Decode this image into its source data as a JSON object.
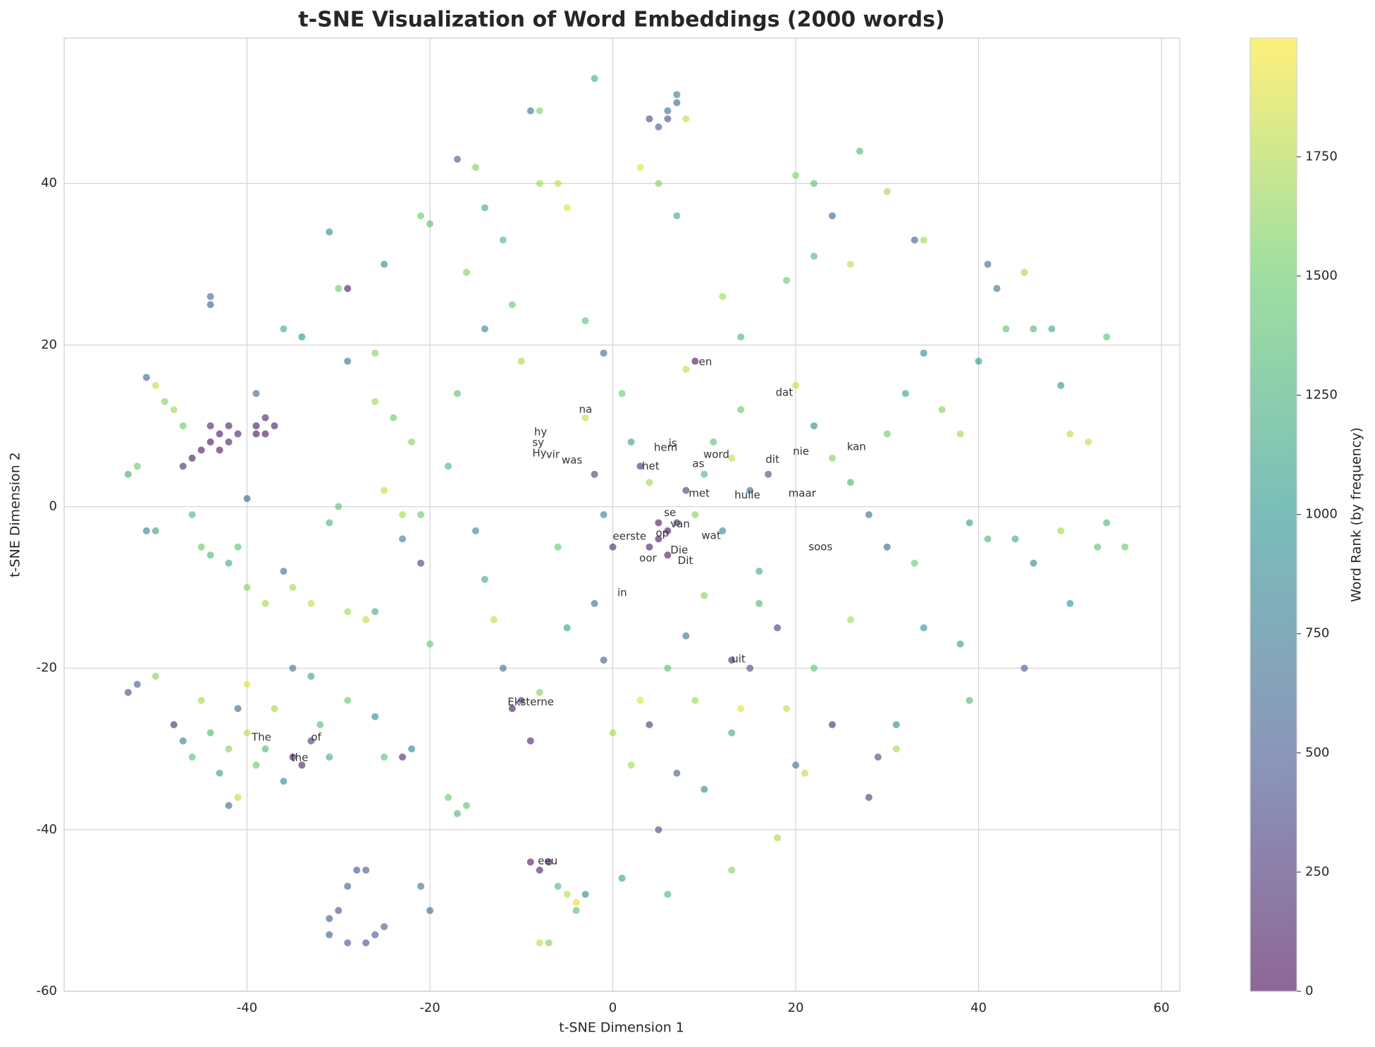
{
  "chart_data": {
    "type": "scatter",
    "title": "t-SNE Visualization of Word Embeddings (2000 words)",
    "x_label": "t-SNE Dimension 1",
    "y_label": "t-SNE Dimension 2",
    "colorbar_label": "Word Rank (by frequency)",
    "colormap": "viridis",
    "alpha": 0.6,
    "grid": true,
    "xlim": [
      -60,
      62
    ],
    "ylim": [
      -60,
      58
    ],
    "xticks": [
      -40,
      -20,
      0,
      20,
      40,
      60
    ],
    "yticks": [
      -60,
      -40,
      -20,
      0,
      20,
      40
    ],
    "clim": [
      0,
      1999
    ],
    "cticks": [
      0,
      250,
      500,
      750,
      1000,
      1250,
      1500,
      1750
    ],
    "points": [
      [
        -53,
        4,
        1200
      ],
      [
        -52,
        5,
        1500
      ],
      [
        -51,
        16,
        600
      ],
      [
        -50,
        15,
        1800
      ],
      [
        -49,
        13,
        1600
      ],
      [
        -48,
        12,
        1700
      ],
      [
        -47,
        10,
        1500
      ],
      [
        -51,
        -3,
        800
      ],
      [
        -50,
        -3,
        1100
      ],
      [
        -46,
        -1,
        1300
      ],
      [
        -45,
        7,
        80
      ],
      [
        -44,
        8,
        60
      ],
      [
        -43,
        9,
        100
      ],
      [
        -42,
        10,
        120
      ],
      [
        -43,
        7,
        90
      ],
      [
        -46,
        6,
        70
      ],
      [
        -41,
        9,
        150
      ],
      [
        -42,
        8,
        110
      ],
      [
        -44,
        10,
        130
      ],
      [
        -47,
        5,
        200
      ],
      [
        -39,
        10,
        60
      ],
      [
        -38,
        9,
        80
      ],
      [
        -37,
        10,
        100
      ],
      [
        -39,
        9,
        50
      ],
      [
        -38,
        11,
        120
      ],
      [
        -40,
        1,
        500
      ],
      [
        -39,
        14,
        600
      ],
      [
        -41,
        -5,
        1400
      ],
      [
        -40,
        -10,
        1600
      ],
      [
        -38,
        -12,
        1700
      ],
      [
        -45,
        -5,
        1500
      ],
      [
        -44,
        -6,
        1300
      ],
      [
        -42,
        -7,
        1200
      ],
      [
        -36,
        -8,
        700
      ],
      [
        -35,
        -10,
        1700
      ],
      [
        -33,
        -12,
        1800
      ],
      [
        -31,
        -2,
        1300
      ],
      [
        -30,
        0,
        1400
      ],
      [
        -29,
        -13,
        1700
      ],
      [
        -27,
        -14,
        1800
      ],
      [
        -44,
        26,
        600
      ],
      [
        -44,
        25,
        500
      ],
      [
        -36,
        22,
        1200
      ],
      [
        -34,
        21,
        1000
      ],
      [
        -31,
        34,
        900
      ],
      [
        -29,
        27,
        100
      ],
      [
        -30,
        27,
        1500
      ],
      [
        -29,
        18,
        700
      ],
      [
        -26,
        19,
        1600
      ],
      [
        -25,
        30,
        900
      ],
      [
        -26,
        13,
        1700
      ],
      [
        -24,
        11,
        1500
      ],
      [
        -22,
        8,
        1600
      ],
      [
        -25,
        2,
        1800
      ],
      [
        -23,
        -1,
        1700
      ],
      [
        -21,
        -1,
        1500
      ],
      [
        -26,
        -13,
        1200
      ],
      [
        -23,
        -4,
        800
      ],
      [
        -21,
        -7,
        300
      ],
      [
        -20,
        -17,
        1500
      ],
      [
        -53,
        -23,
        400
      ],
      [
        -52,
        -22,
        500
      ],
      [
        -50,
        -21,
        1600
      ],
      [
        -48,
        -27,
        200
      ],
      [
        -47,
        -29,
        800
      ],
      [
        -46,
        -31,
        1400
      ],
      [
        -45,
        -24,
        1700
      ],
      [
        -44,
        -28,
        1300
      ],
      [
        -43,
        -33,
        1100
      ],
      [
        -42,
        -30,
        1600
      ],
      [
        -41,
        -25,
        600
      ],
      [
        -40,
        -28,
        1800
      ],
      [
        -39,
        -32,
        1500
      ],
      [
        -38,
        -30,
        1300
      ],
      [
        -37,
        -25,
        1700
      ],
      [
        -36,
        -34,
        900
      ],
      [
        -35,
        -31,
        200
      ],
      [
        -34,
        -32,
        150
      ],
      [
        -33,
        -29,
        300
      ],
      [
        -32,
        -27,
        1400
      ],
      [
        -41,
        -36,
        1800
      ],
      [
        -42,
        -37,
        600
      ],
      [
        -40,
        -22,
        1900
      ],
      [
        -35,
        -20,
        700
      ],
      [
        -33,
        -21,
        1100
      ],
      [
        -31,
        -31,
        1200
      ],
      [
        -29,
        -24,
        1500
      ],
      [
        -26,
        -26,
        900
      ],
      [
        -25,
        -31,
        1400
      ],
      [
        -23,
        -31,
        200
      ],
      [
        -31,
        -51,
        500
      ],
      [
        -30,
        -50,
        450
      ],
      [
        -29,
        -47,
        520
      ],
      [
        -28,
        -45,
        480
      ],
      [
        -27,
        -45,
        510
      ],
      [
        -25,
        -52,
        530
      ],
      [
        -26,
        -53,
        490
      ],
      [
        -27,
        -54,
        470
      ],
      [
        -29,
        -54,
        500
      ],
      [
        -31,
        -53,
        540
      ],
      [
        -21,
        -47,
        700
      ],
      [
        -20,
        -50,
        600
      ],
      [
        -22,
        -30,
        800
      ],
      [
        -21,
        36,
        1500
      ],
      [
        -20,
        35,
        1400
      ],
      [
        -15,
        42,
        1600
      ],
      [
        -14,
        37,
        1200
      ],
      [
        -12,
        33,
        1300
      ],
      [
        -9,
        49,
        700
      ],
      [
        -8,
        49,
        1600
      ],
      [
        -8,
        40,
        1700
      ],
      [
        -6,
        40,
        1800
      ],
      [
        -5,
        37,
        1900
      ],
      [
        -17,
        43,
        500
      ],
      [
        -16,
        29,
        1600
      ],
      [
        -14,
        22,
        900
      ],
      [
        -11,
        25,
        1500
      ],
      [
        -10,
        18,
        1700
      ],
      [
        -17,
        14,
        1400
      ],
      [
        -18,
        5,
        1300
      ],
      [
        -15,
        -3,
        900
      ],
      [
        -13,
        -14,
        1800
      ],
      [
        -12,
        -20,
        700
      ],
      [
        -11,
        -25,
        100
      ],
      [
        -10,
        -24,
        200
      ],
      [
        -8,
        -23,
        1600
      ],
      [
        -9,
        -29,
        150
      ],
      [
        -18,
        -36,
        1500
      ],
      [
        -17,
        -38,
        1300
      ],
      [
        -16,
        -37,
        1400
      ],
      [
        -14,
        -9,
        1200
      ],
      [
        -6,
        -5,
        1500
      ],
      [
        -5,
        -15,
        1100
      ],
      [
        -9,
        -44,
        100
      ],
      [
        -8,
        -45,
        120
      ],
      [
        -7,
        -44,
        90
      ],
      [
        -6,
        -47,
        1300
      ],
      [
        -5,
        -48,
        1800
      ],
      [
        -4,
        -50,
        1400
      ],
      [
        -4,
        -49,
        1900
      ],
      [
        -3,
        -48,
        900
      ],
      [
        -8,
        -54,
        1800
      ],
      [
        -7,
        -54,
        1600
      ],
      [
        -2,
        53,
        1200
      ],
      [
        -1,
        19,
        600
      ],
      [
        -3,
        23,
        1400
      ],
      [
        -3,
        11,
        1800
      ],
      [
        -2,
        4,
        300
      ],
      [
        -1,
        -1,
        800
      ],
      [
        0,
        -5,
        200
      ],
      [
        -2,
        -12,
        700
      ],
      [
        -1,
        -19,
        500
      ],
      [
        0,
        -28,
        1700
      ],
      [
        4,
        48,
        400
      ],
      [
        5,
        47,
        500
      ],
      [
        6,
        49,
        700
      ],
      [
        7,
        50,
        600
      ],
      [
        6,
        48,
        450
      ],
      [
        7,
        51,
        800
      ],
      [
        8,
        48,
        1800
      ],
      [
        3,
        42,
        1900
      ],
      [
        5,
        40,
        1600
      ],
      [
        7,
        36,
        1200
      ],
      [
        1,
        14,
        1500
      ],
      [
        2,
        8,
        1100
      ],
      [
        3,
        5,
        250
      ],
      [
        4,
        3,
        1700
      ],
      [
        5,
        -2,
        100
      ],
      [
        5,
        -4,
        80
      ],
      [
        6,
        -3,
        60
      ],
      [
        4,
        -5,
        120
      ],
      [
        6,
        -6,
        90
      ],
      [
        7,
        -2,
        200
      ],
      [
        8,
        2,
        300
      ],
      [
        9,
        -1,
        1600
      ],
      [
        10,
        4,
        1300
      ],
      [
        11,
        8,
        1400
      ],
      [
        12,
        -3,
        900
      ],
      [
        13,
        6,
        1800
      ],
      [
        14,
        12,
        1500
      ],
      [
        15,
        2,
        700
      ],
      [
        16,
        -8,
        1200
      ],
      [
        17,
        4,
        400
      ],
      [
        9,
        18,
        80
      ],
      [
        8,
        17,
        1800
      ],
      [
        12,
        26,
        1700
      ],
      [
        14,
        21,
        1300
      ],
      [
        10,
        -11,
        1600
      ],
      [
        8,
        -16,
        700
      ],
      [
        6,
        -20,
        1400
      ],
      [
        3,
        -24,
        1900
      ],
      [
        4,
        -27,
        300
      ],
      [
        2,
        -32,
        1700
      ],
      [
        7,
        -33,
        500
      ],
      [
        10,
        -35,
        900
      ],
      [
        13,
        -28,
        1200
      ],
      [
        14,
        -25,
        1900
      ],
      [
        5,
        -40,
        400
      ],
      [
        1,
        -46,
        1100
      ],
      [
        6,
        -48,
        1300
      ],
      [
        9,
        -24,
        1700
      ],
      [
        13,
        -45,
        1600
      ],
      [
        18,
        -41,
        1700
      ],
      [
        20,
        41,
        1600
      ],
      [
        22,
        40,
        1400
      ],
      [
        27,
        44,
        1300
      ],
      [
        30,
        39,
        1700
      ],
      [
        33,
        33,
        500
      ],
      [
        34,
        33,
        1700
      ],
      [
        24,
        36,
        600
      ],
      [
        19,
        28,
        1500
      ],
      [
        22,
        31,
        1300
      ],
      [
        26,
        30,
        1800
      ],
      [
        20,
        15,
        1800
      ],
      [
        22,
        10,
        900
      ],
      [
        24,
        6,
        1600
      ],
      [
        26,
        3,
        1300
      ],
      [
        28,
        -1,
        700
      ],
      [
        30,
        9,
        1500
      ],
      [
        32,
        14,
        1100
      ],
      [
        34,
        19,
        900
      ],
      [
        36,
        12,
        1600
      ],
      [
        38,
        9,
        1700
      ],
      [
        40,
        18,
        1000
      ],
      [
        41,
        30,
        600
      ],
      [
        42,
        27,
        700
      ],
      [
        43,
        22,
        1400
      ],
      [
        45,
        29,
        1700
      ],
      [
        46,
        22,
        1300
      ],
      [
        48,
        22,
        1200
      ],
      [
        49,
        15,
        1000
      ],
      [
        50,
        9,
        1800
      ],
      [
        52,
        8,
        1800
      ],
      [
        39,
        -2,
        1100
      ],
      [
        41,
        -4,
        1300
      ],
      [
        44,
        -4,
        1200
      ],
      [
        46,
        -7,
        900
      ],
      [
        49,
        -3,
        1700
      ],
      [
        53,
        -5,
        1400
      ],
      [
        54,
        -2,
        1300
      ],
      [
        56,
        -5,
        1500
      ],
      [
        54,
        21,
        1400
      ],
      [
        50,
        -12,
        1000
      ],
      [
        45,
        -20,
        500
      ],
      [
        39,
        -24,
        1300
      ],
      [
        38,
        -17,
        1100
      ],
      [
        34,
        -15,
        1000
      ],
      [
        31,
        -30,
        1700
      ],
      [
        31,
        -27,
        900
      ],
      [
        29,
        -31,
        400
      ],
      [
        28,
        -36,
        300
      ],
      [
        24,
        -27,
        200
      ],
      [
        21,
        -33,
        1800
      ],
      [
        20,
        -32,
        700
      ],
      [
        19,
        -25,
        1800
      ],
      [
        22,
        -20,
        1400
      ],
      [
        26,
        -14,
        1700
      ],
      [
        30,
        -5,
        600
      ],
      [
        33,
        -7,
        1500
      ],
      [
        18,
        -15,
        300
      ],
      [
        15,
        -20,
        400
      ],
      [
        13,
        -19,
        200
      ],
      [
        16,
        -12,
        1300
      ]
    ],
    "annotations": [
      {
        "text": "en",
        "x": 9.4,
        "y": 17.9
      },
      {
        "text": "dat",
        "x": 17.8,
        "y": 14.1
      },
      {
        "text": "na",
        "x": -3.7,
        "y": 12.0
      },
      {
        "text": "hy",
        "x": -8.6,
        "y": 9.2
      },
      {
        "text": "sy",
        "x": -8.8,
        "y": 7.9
      },
      {
        "text": "Hy",
        "x": -8.8,
        "y": 6.6
      },
      {
        "text": "vir",
        "x": -7.3,
        "y": 6.4
      },
      {
        "text": "was",
        "x": -5.6,
        "y": 5.7
      },
      {
        "text": "is",
        "x": 6.1,
        "y": 7.8
      },
      {
        "text": "hem",
        "x": 4.5,
        "y": 7.3
      },
      {
        "text": "het",
        "x": 3.2,
        "y": 5.0
      },
      {
        "text": "as",
        "x": 8.7,
        "y": 5.3
      },
      {
        "text": "word",
        "x": 9.9,
        "y": 6.4
      },
      {
        "text": "nie",
        "x": 19.7,
        "y": 6.8
      },
      {
        "text": "dit",
        "x": 16.7,
        "y": 5.8
      },
      {
        "text": "kan",
        "x": 25.6,
        "y": 7.4
      },
      {
        "text": "met",
        "x": 8.3,
        "y": 1.6
      },
      {
        "text": "hulle",
        "x": 13.3,
        "y": 1.4
      },
      {
        "text": "maar",
        "x": 19.2,
        "y": 1.6
      },
      {
        "text": "se",
        "x": 5.6,
        "y": -0.8
      },
      {
        "text": "van",
        "x": 6.3,
        "y": -2.2
      },
      {
        "text": "op",
        "x": 4.7,
        "y": -3.3
      },
      {
        "text": "eerste",
        "x": 0.0,
        "y": -3.7
      },
      {
        "text": "wat",
        "x": 9.7,
        "y": -3.6
      },
      {
        "text": "soos",
        "x": 21.4,
        "y": -5.0
      },
      {
        "text": "oor",
        "x": 2.9,
        "y": -6.4
      },
      {
        "text": "Die",
        "x": 6.3,
        "y": -5.4
      },
      {
        "text": "Dit",
        "x": 7.1,
        "y": -6.7
      },
      {
        "text": "in",
        "x": 0.5,
        "y": -10.7
      },
      {
        "text": "uit",
        "x": 13.0,
        "y": -18.9
      },
      {
        "text": "Eksterne",
        "x": -11.5,
        "y": -24.2
      },
      {
        "text": "The",
        "x": -39.5,
        "y": -28.6
      },
      {
        "text": "of",
        "x": -33.0,
        "y": -28.6
      },
      {
        "text": "the",
        "x": -35.2,
        "y": -31.1
      },
      {
        "text": "eeu",
        "x": -8.2,
        "y": -43.9
      }
    ]
  }
}
